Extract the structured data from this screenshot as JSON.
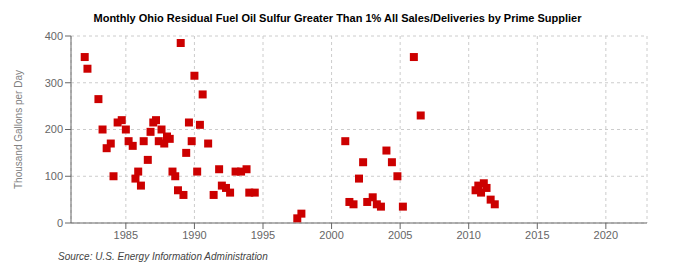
{
  "chart_data": {
    "type": "scatter",
    "title": "Monthly Ohio Residual Fuel Oil Sulfur Greater Than 1% All Sales/Deliveries by Prime Supplier",
    "y_label": "Thousand Gallons per Day",
    "annotations": [
      "Source: U.S. Energy Information Administration"
    ],
    "color": "#cc0000",
    "marker": "square",
    "grid": true,
    "xlim": [
      1981,
      2023
    ],
    "ylim": [
      0,
      400
    ],
    "xticks": [
      1985,
      1990,
      1995,
      2000,
      2005,
      2010,
      2015,
      2020
    ],
    "yticks": [
      0,
      100,
      200,
      300,
      400
    ],
    "x": [
      1982.0,
      1982.2,
      1983.0,
      1983.3,
      1983.6,
      1983.9,
      1984.1,
      1984.4,
      1984.7,
      1985.0,
      1985.2,
      1985.5,
      1985.7,
      1985.9,
      1986.1,
      1986.3,
      1986.6,
      1986.8,
      1987.0,
      1987.2,
      1987.4,
      1987.6,
      1987.8,
      1988.0,
      1988.2,
      1988.4,
      1988.6,
      1988.8,
      1989.0,
      1989.2,
      1989.4,
      1989.6,
      1989.8,
      1990.0,
      1990.2,
      1990.4,
      1990.6,
      1991.0,
      1991.4,
      1991.8,
      1992.0,
      1992.3,
      1992.6,
      1993.0,
      1993.4,
      1993.8,
      1994.0,
      1994.4,
      1997.5,
      1997.8,
      2001.0,
      2001.3,
      2001.6,
      2002.0,
      2002.3,
      2002.6,
      2003.0,
      2003.3,
      2003.6,
      2004.0,
      2004.4,
      2004.8,
      2005.2,
      2006.0,
      2006.5,
      2010.5,
      2010.7,
      2010.9,
      2011.1,
      2011.3,
      2011.6,
      2011.9
    ],
    "values": [
      355,
      330,
      265,
      200,
      160,
      170,
      100,
      215,
      220,
      200,
      175,
      165,
      95,
      110,
      80,
      175,
      135,
      195,
      215,
      220,
      175,
      200,
      170,
      185,
      180,
      110,
      100,
      70,
      385,
      60,
      150,
      215,
      175,
      315,
      110,
      210,
      275,
      170,
      60,
      115,
      80,
      75,
      65,
      110,
      110,
      115,
      65,
      65,
      10,
      20,
      175,
      45,
      40,
      95,
      130,
      45,
      55,
      40,
      35,
      155,
      130,
      100,
      35,
      355,
      230,
      70,
      80,
      65,
      85,
      75,
      50,
      40
    ]
  }
}
